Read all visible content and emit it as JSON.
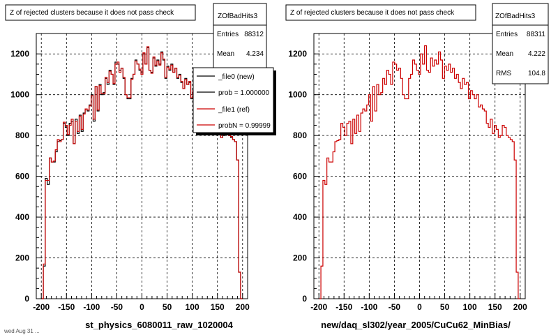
{
  "chart_data": [
    {
      "type": "histogram",
      "title": "Z of rejected clusters  because it does not pass check",
      "xlabel": "st_physics_6080011_raw_1020004",
      "xlim": [
        -210,
        210
      ],
      "ylim": [
        0,
        1300
      ],
      "xticks": [
        -200,
        -150,
        -100,
        -50,
        0,
        50,
        100,
        150,
        200
      ],
      "xtick_labels": [
        "-200",
        "-150",
        "-100",
        "-50",
        "0",
        "50",
        "100",
        "150",
        "200"
      ],
      "yticks": [
        0,
        200,
        400,
        600,
        800,
        1000,
        1200
      ],
      "ytick_labels": [
        "0",
        "200",
        "400",
        "600",
        "800",
        "1000",
        "1200"
      ],
      "grid": true,
      "bin_edges_x": [
        -200,
        200
      ],
      "series": [
        {
          "name": "_file0 (new)",
          "color": "#000000",
          "values": [
            0,
            160,
            590,
            560,
            690,
            670,
            670,
            720,
            770,
            775,
            780,
            860,
            840,
            800,
            860,
            870,
            760,
            880,
            810,
            900,
            820,
            910,
            930,
            920,
            950,
            1000,
            870,
            1040,
            920,
            1050,
            1000,
            1010,
            1080,
            1050,
            1120,
            1100,
            1050,
            1160,
            1150,
            1120,
            1130,
            1080,
            1000,
            980,
            980,
            1080,
            1100,
            1170,
            1150,
            1120,
            1100,
            1200,
            1150,
            1230,
            1120,
            1110,
            1180,
            1140,
            1170,
            1150,
            1210,
            1170,
            1080,
            1140,
            1120,
            1150,
            1110,
            1130,
            1080,
            1100,
            1060,
            1030,
            1080,
            1050,
            1060,
            980,
            1020,
            1000,
            980,
            1000,
            940,
            950,
            930,
            920,
            860,
            840,
            880,
            810,
            850,
            830,
            790,
            800,
            850,
            840,
            800,
            790,
            780,
            770,
            680,
            130,
            0
          ]
        },
        {
          "name": "_file1 (ref)",
          "color": "#cc0000",
          "values": [
            0,
            170,
            580,
            580,
            690,
            670,
            675,
            730,
            780,
            770,
            780,
            865,
            850,
            805,
            850,
            880,
            760,
            870,
            820,
            895,
            830,
            905,
            930,
            925,
            945,
            995,
            880,
            1040,
            925,
            1045,
            1005,
            1005,
            1085,
            1060,
            1115,
            1100,
            1055,
            1150,
            1160,
            1110,
            1130,
            1085,
            1000,
            985,
            985,
            1075,
            1100,
            1165,
            1150,
            1125,
            1100,
            1205,
            1150,
            1235,
            1120,
            1105,
            1185,
            1145,
            1165,
            1145,
            1205,
            1175,
            1085,
            1135,
            1125,
            1145,
            1110,
            1130,
            1085,
            1095,
            1065,
            1030,
            1075,
            1050,
            1065,
            985,
            1020,
            1000,
            985,
            995,
            945,
            945,
            935,
            925,
            860,
            845,
            875,
            815,
            850,
            825,
            790,
            805,
            845,
            835,
            800,
            795,
            780,
            770,
            680,
            130,
            0
          ]
        }
      ],
      "stats": {
        "name": "ZOfBadHits3",
        "entries_label": "Entries",
        "entries": "88312",
        "mean_label": "Mean",
        "mean": "4.234"
      },
      "legend": {
        "placement": "top-right",
        "entries": [
          "_file0 (new)",
          "prob = 1.000000",
          "_file1 (ref)",
          "probN = 0.99999"
        ],
        "colors": [
          "#000000",
          "#000000",
          "#cc0000",
          "#cc0000"
        ]
      }
    },
    {
      "type": "histogram",
      "title": "Z of rejected clusters  because it does not pass check",
      "xlabel": "new/daq_sl302/year_2005/CuCu62_MinBias/",
      "xlim": [
        -210,
        210
      ],
      "ylim": [
        0,
        1300
      ],
      "xticks": [
        -200,
        -150,
        -100,
        -50,
        0,
        50,
        100,
        150,
        200
      ],
      "xtick_labels": [
        "-200",
        "-150",
        "-100",
        "-50",
        "0",
        "50",
        "100",
        "150",
        "200"
      ],
      "yticks": [
        0,
        200,
        400,
        600,
        800,
        1000,
        1200
      ],
      "ytick_labels": [
        "0",
        "200",
        "400",
        "600",
        "800",
        "1000",
        "1200"
      ],
      "grid": true,
      "bin_edges_x": [
        -200,
        200
      ],
      "series": [
        {
          "name": "",
          "color": "#cc0000",
          "values": [
            0,
            160,
            580,
            560,
            690,
            670,
            670,
            720,
            770,
            775,
            780,
            860,
            840,
            800,
            860,
            870,
            760,
            880,
            810,
            900,
            820,
            910,
            930,
            920,
            950,
            1000,
            870,
            1040,
            920,
            1050,
            1000,
            1010,
            1080,
            1050,
            1120,
            1100,
            1050,
            1160,
            1150,
            1120,
            1130,
            1080,
            1000,
            980,
            980,
            1080,
            1100,
            1170,
            1150,
            1120,
            1100,
            1200,
            1150,
            1240,
            1120,
            1110,
            1180,
            1140,
            1170,
            1150,
            1210,
            1170,
            1080,
            1140,
            1120,
            1150,
            1110,
            1130,
            1080,
            1100,
            1060,
            1030,
            1080,
            1050,
            1060,
            980,
            1020,
            1000,
            980,
            1000,
            940,
            950,
            930,
            920,
            860,
            840,
            880,
            810,
            850,
            830,
            790,
            800,
            850,
            840,
            800,
            790,
            780,
            770,
            680,
            130,
            0
          ]
        }
      ],
      "stats": {
        "name": "ZOfBadHits3",
        "entries_label": "Entries",
        "entries": "88311",
        "mean_label": "Mean",
        "mean": "4.222",
        "rms_label": "RMS",
        "rms": "104.8"
      }
    }
  ],
  "footer_text": "wed Aug 31 ..."
}
